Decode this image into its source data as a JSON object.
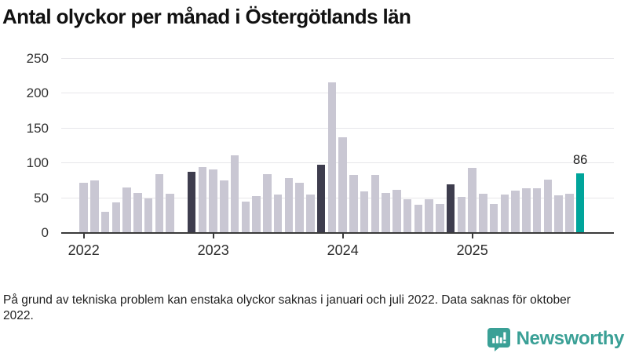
{
  "title": "Antal olyckor per månad i Östergötlands län",
  "footnote": "På grund av tekniska problem kan enstaka olyckor saknas i januari och juli 2022. Data saknas för oktober 2022.",
  "branding": {
    "name": "Newsworthy",
    "icon": "newsworthy-speech-bubble-bar-chart",
    "color": "#3aa096"
  },
  "colors": {
    "bar": "#c9c7d3",
    "emphasis": "#3e3d4e",
    "accent": "#00a59b",
    "axis": "#3a3a3a",
    "grid": "#e7e6ea",
    "text": "#1f1f1f"
  },
  "chart_data": {
    "type": "bar",
    "title": "Antal olyckor per månad i Östergötlands län",
    "xlabel": "",
    "ylabel": "",
    "ylim": [
      0,
      250
    ],
    "yticks": [
      0,
      50,
      100,
      150,
      200,
      250
    ],
    "x_tick_labels": [
      "2022",
      "2023",
      "2024",
      "2025"
    ],
    "grid": true,
    "legend": "none",
    "highlight_month_index": 10,
    "missing_data": [
      "2022-10"
    ],
    "last_bar_label": "86",
    "series": [
      {
        "year": "2022",
        "values": [
          72,
          76,
          30,
          44,
          65,
          57,
          50,
          85,
          56,
          null,
          88,
          95
        ]
      },
      {
        "year": "2023",
        "values": [
          91,
          76,
          112,
          45,
          53,
          84,
          55,
          79,
          72,
          55,
          98,
          216
        ]
      },
      {
        "year": "2024",
        "values": [
          137,
          83,
          60,
          83,
          58,
          62,
          49,
          41,
          49,
          42,
          70,
          52
        ]
      },
      {
        "year": "2025",
        "values": [
          93,
          56,
          42,
          55,
          61,
          64,
          64,
          77,
          54,
          56,
          86
        ]
      }
    ]
  }
}
